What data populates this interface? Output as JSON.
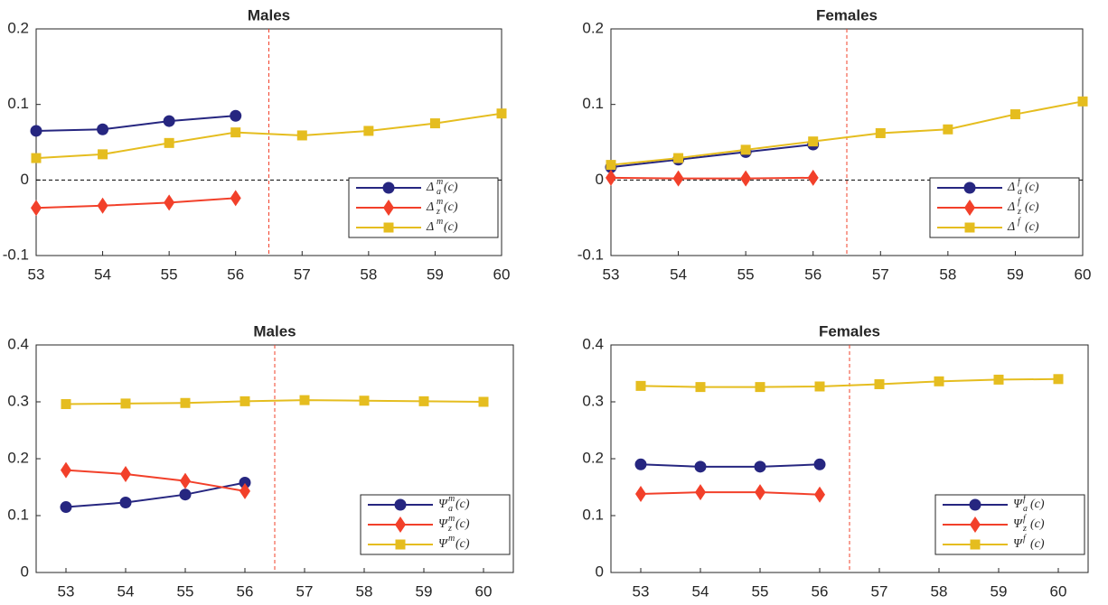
{
  "chart_data": [
    {
      "type": "line",
      "title": "Males",
      "xlim": [
        53,
        60
      ],
      "xticks": [
        53,
        54,
        55,
        56,
        57,
        58,
        59,
        60
      ],
      "ylim": [
        -0.1,
        0.2
      ],
      "yticks": [
        -0.1,
        0,
        0.1,
        0.2
      ],
      "vline": 56.5,
      "hline": 0,
      "legend": "lower right",
      "series": [
        {
          "name": "Δ_a^m(c)",
          "color": "#262680",
          "marker": "circle",
          "x": [
            53,
            54,
            55,
            56
          ],
          "values": [
            0.065,
            0.067,
            0.078,
            0.085
          ]
        },
        {
          "name": "Δ_z^m(c)",
          "color": "#f2402a",
          "marker": "diamond",
          "x": [
            53,
            54,
            55,
            56
          ],
          "values": [
            -0.037,
            -0.034,
            -0.03,
            -0.024
          ]
        },
        {
          "name": "Δ^m(c)",
          "color": "#e5bd1f",
          "marker": "square",
          "x": [
            53,
            54,
            55,
            56,
            57,
            58,
            59,
            60
          ],
          "values": [
            0.029,
            0.034,
            0.049,
            0.063,
            0.059,
            0.065,
            0.075,
            0.088
          ]
        }
      ]
    },
    {
      "type": "line",
      "title": "Females",
      "xlim": [
        53,
        60
      ],
      "xticks": [
        53,
        54,
        55,
        56,
        57,
        58,
        59,
        60
      ],
      "ylim": [
        -0.1,
        0.2
      ],
      "yticks": [
        -0.1,
        0,
        0.1,
        0.2
      ],
      "vline": 56.5,
      "hline": 0,
      "legend": "lower right",
      "series": [
        {
          "name": "Δ_a^f(c)",
          "color": "#262680",
          "marker": "circle",
          "x": [
            53,
            54,
            55,
            56
          ],
          "values": [
            0.017,
            0.027,
            0.037,
            0.047
          ]
        },
        {
          "name": "Δ_z^f(c)",
          "color": "#f2402a",
          "marker": "diamond",
          "x": [
            53,
            54,
            55,
            56
          ],
          "values": [
            0.003,
            0.002,
            0.002,
            0.003
          ]
        },
        {
          "name": "Δ^f(c)",
          "color": "#e5bd1f",
          "marker": "square",
          "x": [
            53,
            54,
            55,
            56,
            57,
            58,
            59,
            60
          ],
          "values": [
            0.02,
            0.029,
            0.04,
            0.051,
            0.062,
            0.067,
            0.087,
            0.104
          ]
        }
      ]
    },
    {
      "type": "line",
      "title": "Males",
      "xlim": [
        52.5,
        60.5
      ],
      "xticks": [
        53,
        54,
        55,
        56,
        57,
        58,
        59,
        60
      ],
      "ylim": [
        0,
        0.4
      ],
      "yticks": [
        0,
        0.1,
        0.2,
        0.3,
        0.4
      ],
      "vline": 56.5,
      "legend": "lower right",
      "series": [
        {
          "name": "Ψ_a^m(c)",
          "color": "#262680",
          "marker": "circle",
          "x": [
            53,
            54,
            55,
            56
          ],
          "values": [
            0.115,
            0.123,
            0.137,
            0.158
          ]
        },
        {
          "name": "Ψ_z^m(c)",
          "color": "#f2402a",
          "marker": "diamond",
          "x": [
            53,
            54,
            55,
            56
          ],
          "values": [
            0.18,
            0.173,
            0.161,
            0.143
          ]
        },
        {
          "name": "Ψ^m(c)",
          "color": "#e5bd1f",
          "marker": "square",
          "x": [
            53,
            54,
            55,
            56,
            57,
            58,
            59,
            60
          ],
          "values": [
            0.296,
            0.297,
            0.298,
            0.301,
            0.303,
            0.302,
            0.301,
            0.3
          ]
        }
      ]
    },
    {
      "type": "line",
      "title": "Females",
      "xlim": [
        52.5,
        60.5
      ],
      "xticks": [
        53,
        54,
        55,
        56,
        57,
        58,
        59,
        60
      ],
      "ylim": [
        0,
        0.4
      ],
      "yticks": [
        0,
        0.1,
        0.2,
        0.3,
        0.4
      ],
      "vline": 56.5,
      "legend": "lower right",
      "series": [
        {
          "name": "Ψ_a^f(c)",
          "color": "#262680",
          "marker": "circle",
          "x": [
            53,
            54,
            55,
            56
          ],
          "values": [
            0.19,
            0.186,
            0.186,
            0.19
          ]
        },
        {
          "name": "Ψ_z^f(c)",
          "color": "#f2402a",
          "marker": "diamond",
          "x": [
            53,
            54,
            55,
            56
          ],
          "values": [
            0.138,
            0.141,
            0.141,
            0.137
          ]
        },
        {
          "name": "Ψ^f(c)",
          "color": "#e5bd1f",
          "marker": "square",
          "x": [
            53,
            54,
            55,
            56,
            57,
            58,
            59,
            60
          ],
          "values": [
            0.328,
            0.326,
            0.326,
            0.327,
            0.331,
            0.336,
            0.339,
            0.34
          ]
        }
      ]
    }
  ]
}
